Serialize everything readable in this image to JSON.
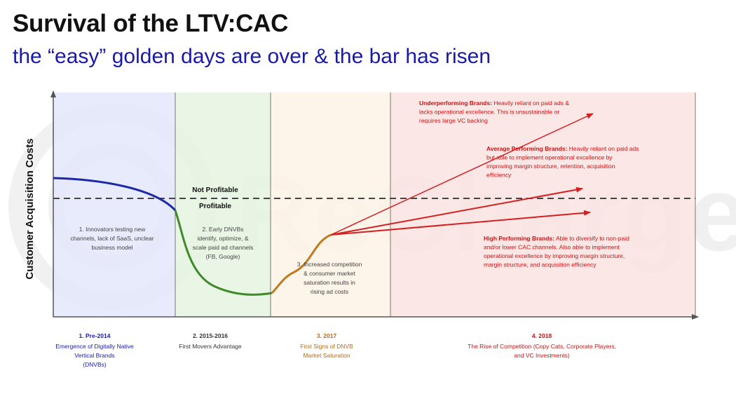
{
  "title": "Survival of the LTV:CAC",
  "subtitle": "the “easy” golden days are over & the bar has risen",
  "watermark_text": "ReCharge",
  "y_axis_label": "Customer Acquisition Costs",
  "threshold": {
    "above_label": "Not Profitable",
    "below_label": "Profitable"
  },
  "phases": [
    {
      "color": "#e4e7fb",
      "description": [
        "1. Innovators testing new",
        "channels, lack of SaaS, unclear",
        "business model"
      ],
      "caption_title": "1. Pre-2014",
      "caption_lines": [
        "Emergence of Digitally Native",
        "Vertical Brands",
        "(DNVBs)"
      ],
      "caption_color": "#1a1aa8"
    },
    {
      "color": "#e6f5e0",
      "description": [
        "2. Early DNVBs",
        "identify, optimize, &",
        "scale paid ad channels",
        "(FB, Google)"
      ],
      "caption_title": "2. 2015-2016",
      "caption_lines": [
        "First Movers Advantage"
      ],
      "caption_color": "#333333"
    },
    {
      "color": "#fdf2e6",
      "description": [
        "3. Increased competition",
        "& consumer market",
        "saturation results in",
        "rising ad costs"
      ],
      "caption_title": "3. 2017",
      "caption_lines": [
        "First Signs of DNVB",
        "Market Saturation"
      ],
      "caption_color": "#b86a16"
    },
    {
      "color": "#fbe3e3",
      "description": [],
      "caption_title": "4. 2018",
      "caption_lines": [
        "The Rise of Competition (Copy Cats, Corporate Players,",
        "and VC Investments)"
      ],
      "caption_color": "#cc1111"
    }
  ],
  "brand_segments": [
    {
      "heading": "Underperforming Brands:",
      "lines": [
        " Heavily reliant on paid ads &",
        "lacks operational excellence. This is unsustainable or",
        "requires large VC backing"
      ]
    },
    {
      "heading": "Average Performing Brands:",
      "lines": [
        " Heavily reliant on paid ads",
        "but able to implement operational excellence by",
        "improving margin structure, retention, acquisition",
        "efficiency"
      ]
    },
    {
      "heading": "High Performing Brands:",
      "lines": [
        " Able to diversify to non-paid",
        "and/or lower CAC channels. Also able to implement",
        "operational excellence by improving margin structure,",
        "margin structure, and acquisition efficiency"
      ]
    }
  ],
  "colors": {
    "phase1_curve": "#1f2aa6",
    "phase2_curve": "#3f8a2a",
    "phase3_curve": "#c07a1c",
    "arrow": "#d42020",
    "segment_text": "#cc1111",
    "description_text": "#444444",
    "axis": "#555555",
    "divider": "#777777",
    "threshold_line": "#444444"
  }
}
